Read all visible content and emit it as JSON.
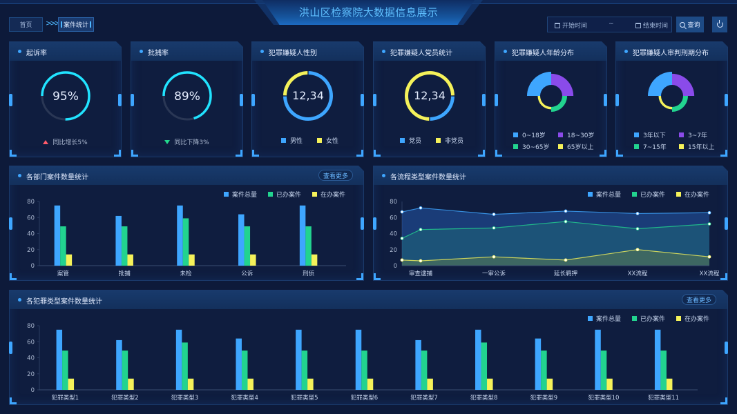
{
  "header": {
    "title": "洪山区检察院大数据信息展示",
    "breadcrumb": [
      {
        "label": "首页"
      },
      {
        "label": "案件统计"
      }
    ],
    "breadcrumb_separator": ">>>",
    "start_placeholder": "开始时间",
    "range_separator": "~",
    "end_placeholder": "结束时间",
    "query_label": "查询",
    "icons": {
      "calendar": "calendar-icon",
      "search": "search-icon",
      "power": "power-icon"
    }
  },
  "colors": {
    "blue": "#3ea6ff",
    "green": "#22d38f",
    "yellow": "#f5f25a",
    "purple": "#8a4bea",
    "cyan": "#21e3ff",
    "track": "#2a3755",
    "up": "#ff5a6a",
    "down": "#22d98d"
  },
  "kpis": [
    {
      "title": "起诉率",
      "value": "95%",
      "percent": 95,
      "trend": "同比增长5%",
      "direction": "up"
    },
    {
      "title": "批捕率",
      "value": "89%",
      "percent": 89,
      "trend": "同比下降3%",
      "direction": "down"
    }
  ],
  "donuts": [
    {
      "title": "犯罪嫌疑人性别",
      "value": "12,34",
      "slices": [
        {
          "label": "男性",
          "share": 75,
          "color": "#3ea6ff"
        },
        {
          "label": "女性",
          "share": 25,
          "color": "#f5f25a"
        }
      ]
    },
    {
      "title": "犯罪嫌疑人党员统计",
      "value": "12,34",
      "slices": [
        {
          "label": "党员",
          "share": 25,
          "color": "#3ea6ff"
        },
        {
          "label": "非党员",
          "share": 75,
          "color": "#f5f25a"
        }
      ]
    }
  ],
  "roses": [
    {
      "title": "犯罪嫌疑人年龄分布",
      "slices": [
        {
          "label": "0~18岁",
          "value": 100,
          "color": "#3ea6ff"
        },
        {
          "label": "18~30岁",
          "value": 85,
          "color": "#8a4bea"
        },
        {
          "label": "30~65岁",
          "value": 70,
          "color": "#22d38f"
        },
        {
          "label": "65岁以上",
          "value": 55,
          "color": "#f5f25a"
        }
      ]
    },
    {
      "title": "犯罪嫌疑人审判刑期分布",
      "slices": [
        {
          "label": "3年以下",
          "value": 100,
          "color": "#3ea6ff"
        },
        {
          "label": "3~7年",
          "value": 85,
          "color": "#8a4bea"
        },
        {
          "label": "7~15年",
          "value": 70,
          "color": "#22d38f"
        },
        {
          "label": "15年以上",
          "value": 55,
          "color": "#f5f25a"
        }
      ]
    }
  ],
  "more_label": "查看更多",
  "chart_data": [
    {
      "type": "bar",
      "title": "各部门案件数量统计",
      "categories": [
        "案管",
        "批捕",
        "未检",
        "公诉",
        "刑侦"
      ],
      "series": [
        {
          "name": "案件总量",
          "color": "#3ea6ff",
          "values": [
            75,
            62,
            75,
            64,
            75
          ]
        },
        {
          "name": "已办案件",
          "color": "#22d38f",
          "values": [
            49,
            49,
            59,
            49,
            49
          ]
        },
        {
          "name": "在办案件",
          "color": "#f5f25a",
          "values": [
            14,
            14,
            14,
            14,
            14
          ]
        }
      ],
      "ylim": [
        0,
        80
      ],
      "yticks": [
        0,
        20,
        40,
        60,
        80
      ],
      "legend": "top-right"
    },
    {
      "type": "area",
      "title": "各流程类型案件数量统计",
      "categories": [
        "",
        "审查逮捕",
        "一审公诉",
        "延长羁押",
        "XX流程",
        "XX流程"
      ],
      "series": [
        {
          "name": "案件总量",
          "color": "#3ea6ff",
          "values": [
            67,
            72,
            64,
            68,
            65,
            66
          ]
        },
        {
          "name": "已办案件",
          "color": "#22d38f",
          "values": [
            34,
            45,
            47,
            55,
            46,
            52
          ]
        },
        {
          "name": "在办案件",
          "color": "#f5f25a",
          "values": [
            7,
            6,
            11,
            7,
            20,
            11
          ]
        }
      ],
      "ylim": [
        0,
        80
      ],
      "yticks": [
        0,
        20,
        40,
        60,
        80
      ],
      "legend": "top-right"
    },
    {
      "type": "bar",
      "title": "各犯罪类型案件数量统计",
      "categories": [
        "犯罪类型1",
        "犯罪类型2",
        "犯罪类型3",
        "犯罪类型4",
        "犯罪类型5",
        "犯罪类型6",
        "犯罪类型7",
        "犯罪类型8",
        "犯罪类型9",
        "犯罪类型10",
        "犯罪类型11"
      ],
      "series": [
        {
          "name": "案件总量",
          "color": "#3ea6ff",
          "values": [
            75,
            62,
            75,
            64,
            75,
            75,
            62,
            75,
            64,
            75,
            75
          ]
        },
        {
          "name": "已办案件",
          "color": "#22d38f",
          "values": [
            49,
            49,
            59,
            49,
            49,
            49,
            49,
            59,
            49,
            49,
            49
          ]
        },
        {
          "name": "在办案件",
          "color": "#f5f25a",
          "values": [
            14,
            14,
            14,
            14,
            14,
            14,
            14,
            14,
            14,
            14,
            14
          ]
        }
      ],
      "ylim": [
        0,
        80
      ],
      "yticks": [
        0,
        20,
        40,
        60,
        80
      ],
      "legend": "top-right"
    }
  ]
}
